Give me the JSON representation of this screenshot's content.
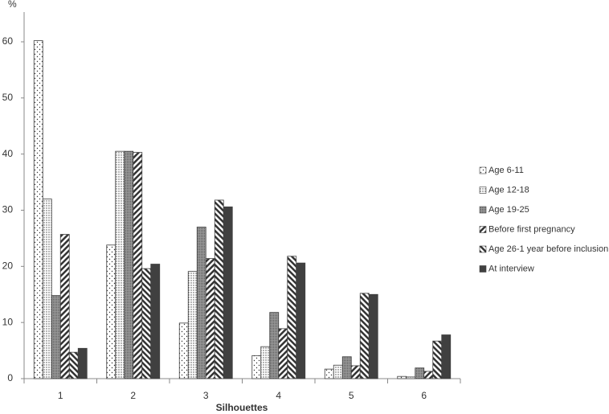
{
  "chart_data": {
    "type": "bar",
    "x_label": "Silhouettes",
    "y_label": "%",
    "categories": [
      "1",
      "2",
      "3",
      "4",
      "5",
      "6"
    ],
    "series": [
      {
        "name": "Age 6-11",
        "color": "#404040",
        "pattern": "sparse-dots",
        "values": [
          60.2,
          23.8,
          9.9,
          4.1,
          1.7,
          0.4
        ]
      },
      {
        "name": "Age 12-18",
        "color": "#404040",
        "pattern": "dense-dots",
        "values": [
          32,
          40.5,
          19.1,
          5.7,
          2.4,
          0.3
        ]
      },
      {
        "name": "Age 19-25",
        "color": "#404040",
        "pattern": "grid",
        "values": [
          14.8,
          40.5,
          27.0,
          11.8,
          3.9,
          1.9
        ]
      },
      {
        "name": "Before first pregnancy",
        "color": "#404040",
        "pattern": "hatch-right",
        "values": [
          25.7,
          40.3,
          21.4,
          8.9,
          2.3,
          1.3
        ]
      },
      {
        "name": "Age 26-1 year before inclusion",
        "color": "#404040",
        "pattern": "hatch-left",
        "values": [
          4.7,
          19.6,
          31.8,
          21.8,
          15.2,
          6.7
        ]
      },
      {
        "name": "At interview",
        "color": "#404040",
        "pattern": "solid",
        "values": [
          5.4,
          20.4,
          30.6,
          20.6,
          15.0,
          7.8
        ]
      }
    ],
    "ylim": [
      0,
      60
    ],
    "yticks": [
      0,
      10,
      20,
      30,
      40,
      50,
      60
    ],
    "grid": false,
    "legend": "right"
  }
}
